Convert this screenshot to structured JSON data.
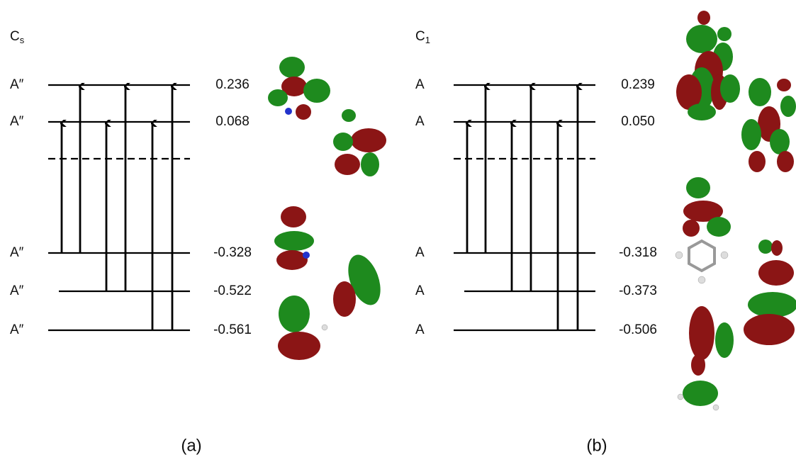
{
  "panels": [
    {
      "symmetry": "C",
      "subscript": "s",
      "caption": "(a)",
      "levels": [
        {
          "label": "A″",
          "energy": "0.236"
        },
        {
          "label": "A″",
          "energy": "0.068"
        },
        {
          "label": "A″",
          "energy": "-0.328"
        },
        {
          "label": "A″",
          "energy": "-0.522"
        },
        {
          "label": "A″",
          "energy": "-0.561"
        }
      ]
    },
    {
      "symmetry": "C",
      "subscript": "1",
      "caption": "(b)",
      "levels": [
        {
          "label": "A",
          "energy": "0.239"
        },
        {
          "label": "A",
          "energy": "0.050"
        },
        {
          "label": "A",
          "energy": "-0.318"
        },
        {
          "label": "A",
          "energy": "-0.373"
        },
        {
          "label": "A",
          "energy": "-0.506"
        }
      ]
    }
  ]
}
